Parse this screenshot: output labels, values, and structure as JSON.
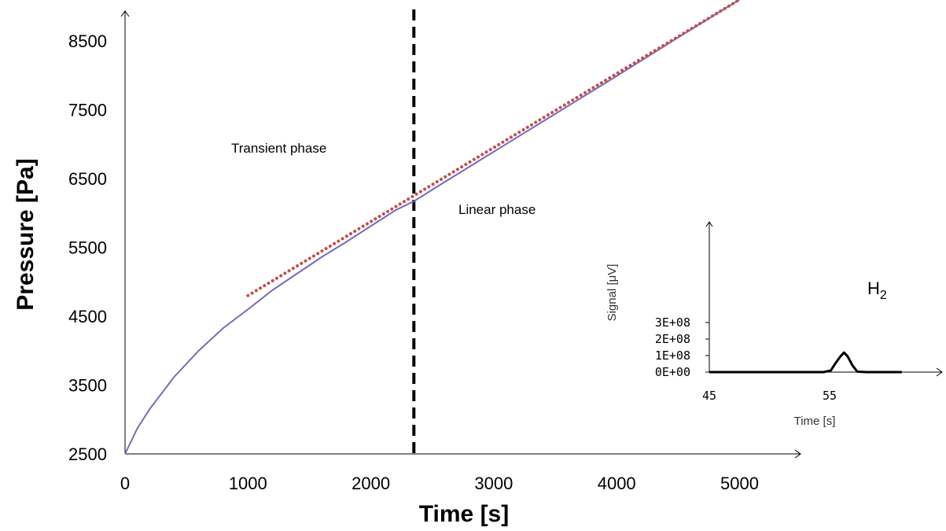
{
  "chart_data": [
    {
      "type": "line",
      "xlabel": "Time [s]",
      "ylabel": "Pressure [Pa]",
      "xlim": [
        0,
        5500
      ],
      "ylim": [
        2500,
        9000
      ],
      "x_ticks": [
        "0",
        "1000",
        "2000",
        "3000",
        "4000",
        "5000"
      ],
      "y_ticks": [
        "2500",
        "3500",
        "4500",
        "5500",
        "6500",
        "7500",
        "8500"
      ],
      "series": [
        {
          "style": "solid",
          "color": "#7b68b8",
          "x": [
            0,
            100,
            200,
            400,
            600,
            800,
            1000,
            1200,
            1400,
            1600,
            1800,
            2000,
            2200,
            2350,
            2600,
            3000,
            3500,
            4000,
            4500,
            5000
          ],
          "y": [
            2500,
            2870,
            3150,
            3620,
            4000,
            4330,
            4600,
            4880,
            5120,
            5360,
            5580,
            5810,
            6040,
            6170,
            6450,
            6890,
            7440,
            7990,
            8550,
            9100
          ]
        },
        {
          "style": "dotted",
          "color": "#c0504d",
          "x": [
            1000,
            5000
          ],
          "y": [
            4800,
            9100
          ]
        }
      ],
      "vline": {
        "x": 2350,
        "style": "dashed",
        "color": "#000000"
      },
      "annotations": [
        {
          "text": "Transient phase",
          "x": 1350,
          "y": 6950
        },
        {
          "text": "Linear phase",
          "x": 2730,
          "y": 6050
        }
      ]
    },
    {
      "type": "line",
      "inset": true,
      "xlabel": "Time [s]",
      "ylabel": "Signal [μV]",
      "x_ticks": [
        "45",
        "55"
      ],
      "y_ticks": [
        "0E+00",
        "1E+08",
        "2E+08",
        "3E+08"
      ],
      "xlim": [
        45,
        64
      ],
      "ylim": [
        0,
        300000000
      ],
      "peak_label": "H",
      "peak_label_sub": "2",
      "series": [
        {
          "color": "#000000",
          "x": [
            45,
            54.5,
            55.1,
            55.5,
            55.9,
            56.2,
            56.5,
            56.9,
            57.3,
            58,
            61
          ],
          "y": [
            0,
            0,
            10000000,
            55000000,
            95000000,
            118000000,
            95000000,
            40000000,
            3000000,
            0,
            0
          ]
        }
      ]
    }
  ]
}
